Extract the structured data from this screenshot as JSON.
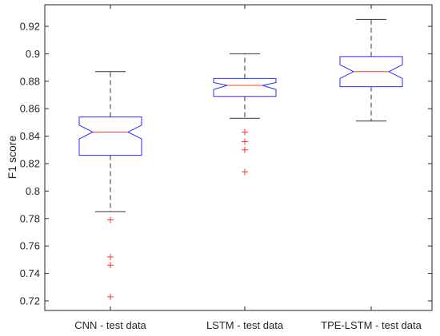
{
  "chart_data": {
    "type": "boxplot",
    "notched": true,
    "title": "",
    "xlabel": "",
    "ylabel": "F1 score",
    "ylim": [
      0.71,
      0.93
    ],
    "yticks": [
      0.72,
      0.74,
      0.76,
      0.78,
      0.8,
      0.82,
      0.84,
      0.86,
      0.88,
      0.9,
      0.92
    ],
    "ytick_labels": [
      "0.72",
      "0.74",
      "0.76",
      "0.78",
      "0.8",
      "0.82",
      "0.84",
      "0.86",
      "0.88",
      "0.9",
      "0.92"
    ],
    "categories": [
      "CNN - test data",
      "LSTM - test data",
      "TPE-LSTM - test data"
    ],
    "boxes": [
      {
        "label": "CNN - test data",
        "whisker_low": 0.785,
        "q1": 0.826,
        "median": 0.843,
        "q3": 0.854,
        "whisker_high": 0.887,
        "notch_low": 0.838,
        "notch_high": 0.848,
        "outliers": [
          0.779,
          0.752,
          0.746,
          0.723
        ]
      },
      {
        "label": "LSTM - test data",
        "whisker_low": 0.853,
        "q1": 0.869,
        "median": 0.877,
        "q3": 0.882,
        "whisker_high": 0.9,
        "notch_low": 0.874,
        "notch_high": 0.879,
        "outliers": [
          0.843,
          0.836,
          0.83,
          0.814
        ]
      },
      {
        "label": "TPE-LSTM - test data",
        "whisker_low": 0.851,
        "q1": 0.876,
        "median": 0.887,
        "q3": 0.898,
        "whisker_high": 0.925,
        "notch_low": 0.882,
        "notch_high": 0.892,
        "outliers": []
      }
    ],
    "colors": {
      "box": "#2b2bff",
      "median": "#ff3b3b",
      "whisker": "#333333",
      "outlier": "#ff3333",
      "axis": "#262626"
    },
    "grid": false,
    "legend": "none"
  }
}
